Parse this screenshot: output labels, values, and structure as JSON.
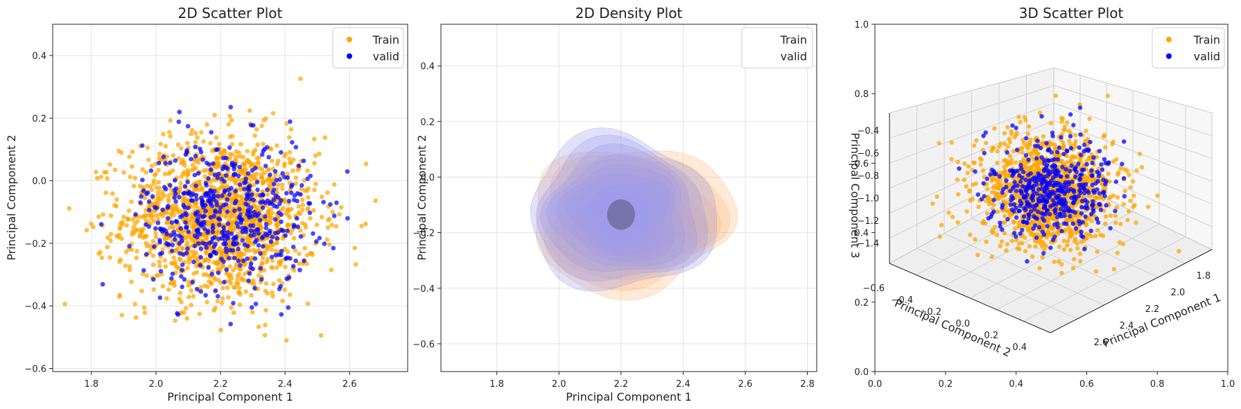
{
  "colors": {
    "train": "#FFA500",
    "valid": "#0000FF",
    "train_density": "#FDB97A",
    "valid_density": "#9A9AF0"
  },
  "chart_data": [
    {
      "type": "scatter",
      "title": "2D Scatter Plot",
      "xlabel": "Principal Component 1",
      "ylabel": "Principal Component 2",
      "xlim": [
        1.68,
        2.78
      ],
      "ylim": [
        -0.61,
        0.5
      ],
      "xticks": [
        1.8,
        2.0,
        2.2,
        2.4,
        2.6
      ],
      "xtick_labels": [
        "1.8",
        "2.0",
        "2.2",
        "2.4",
        "2.6"
      ],
      "yticks": [
        0.4,
        0.2,
        0.0,
        -0.2,
        -0.4,
        -0.6
      ],
      "ytick_labels": [
        "0.4",
        "0.2",
        "0.0",
        "−0.2",
        "−0.4",
        "−0.6"
      ],
      "grid": true,
      "legend": "top-right",
      "series": [
        {
          "name": "Train",
          "color": "#FFA500",
          "center": [
            2.2,
            -0.12
          ],
          "spread": [
            0.15,
            0.13
          ],
          "count": 1500
        },
        {
          "name": "valid",
          "color": "#0000FF",
          "center": [
            2.22,
            -0.11
          ],
          "spread": [
            0.13,
            0.12
          ],
          "count": 500
        }
      ]
    },
    {
      "type": "density",
      "title": "2D Density Plot",
      "xlabel": "Principal Component 1",
      "ylabel": "Principal Component 2",
      "xlim": [
        1.62,
        2.83
      ],
      "ylim": [
        -0.7,
        0.55
      ],
      "xticks": [
        1.8,
        2.0,
        2.2,
        2.4,
        2.6,
        2.8
      ],
      "xtick_labels": [
        "1.8",
        "2.0",
        "2.2",
        "2.4",
        "2.6",
        "2.8"
      ],
      "yticks": [
        0.4,
        0.2,
        0.0,
        -0.2,
        -0.4,
        -0.6
      ],
      "ytick_labels": [
        "0.4",
        "0.2",
        "0.0",
        "−0.2",
        "−0.4",
        "−0.6"
      ],
      "grid": true,
      "legend": "top-right",
      "series": [
        {
          "name": "Train",
          "color": "#FDB97A",
          "center": [
            2.23,
            -0.15
          ],
          "spread": [
            0.33,
            0.26
          ],
          "levels": 10
        },
        {
          "name": "valid",
          "color": "#9A9AF0",
          "center": [
            2.2,
            -0.13
          ],
          "spread": [
            0.31,
            0.27
          ],
          "levels": 10
        }
      ]
    },
    {
      "type": "scatter3d",
      "title": "3D Scatter Plot",
      "xlabel": "Principal Component 1",
      "ylabel": "Principal Component 2",
      "zlabel": "Principal Component 3",
      "frame_xticks": [
        "0.0",
        "0.2",
        "0.4",
        "0.6",
        "0.8",
        "1.0"
      ],
      "frame_yticks": [
        "0.0",
        "0.2",
        "0.4",
        "0.6",
        "0.8",
        "1.0"
      ],
      "x_axis_ticks": [
        "1.8",
        "2.0",
        "2.2",
        "2.4",
        "2.6"
      ],
      "y_axis_ticks": [
        "−0.6",
        "−0.4",
        "−0.2",
        "0.0",
        "0.2",
        "0.4"
      ],
      "z_axis_ticks": [
        "−0.4",
        "−0.6",
        "−0.8",
        "−1.0",
        "−1.2",
        "−1.4"
      ],
      "legend": "top-right",
      "series": [
        {
          "name": "Train",
          "color": "#FFA500",
          "count": 1200
        },
        {
          "name": "valid",
          "color": "#0000FF",
          "count": 450
        }
      ]
    }
  ]
}
